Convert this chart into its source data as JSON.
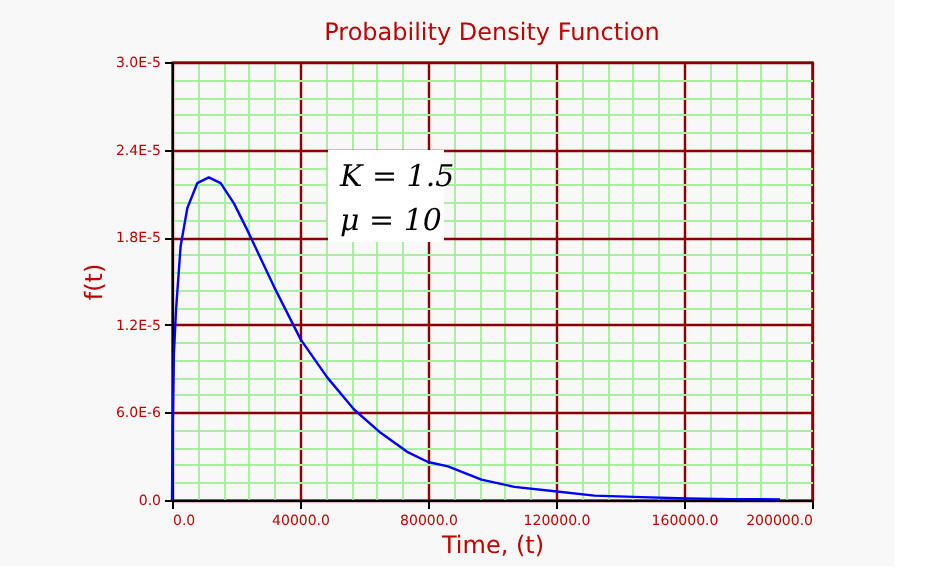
{
  "chart_data": {
    "type": "line",
    "title": "Probability Density Function",
    "xlabel": "Time, (t)",
    "ylabel": "f(t)",
    "annotations": [
      "K = 1.5",
      "μ = 10"
    ],
    "x": [
      0,
      200,
      600,
      1250,
      2700,
      4800,
      7900,
      11500,
      15200,
      19400,
      23500,
      31900,
      40200,
      48500,
      56900,
      65200,
      73500,
      80000,
      86250,
      96700,
      107000,
      119600,
      132000,
      146700,
      161000,
      175000,
      190000
    ],
    "series": [
      {
        "color": "#0000ff",
        "values": [
          0,
          4.6e-06,
          1e-05,
          1.3e-05,
          1.74e-05,
          2e-05,
          2.17e-05,
          2.21e-05,
          2.17e-05,
          2.03e-05,
          1.85e-05,
          1.46e-05,
          1.1e-05,
          8.4e-06,
          6.2e-06,
          4.6e-06,
          3.3e-06,
          2.6e-06,
          2.3e-06,
          1.4e-06,
          9e-07,
          6e-07,
          3e-07,
          2e-07,
          1e-07,
          6e-08,
          4e-08
        ]
      }
    ],
    "xlim": [
      0,
      200000
    ],
    "ylim": [
      0,
      3e-05
    ],
    "xticks": [
      {
        "value": 0,
        "label": "0.0"
      },
      {
        "value": 8000,
        "label": null
      },
      {
        "value": 16000,
        "label": null
      },
      {
        "value": 24000,
        "label": null
      },
      {
        "value": 32000,
        "label": null
      },
      {
        "value": 40000,
        "label": "40000.0"
      },
      {
        "value": 48000,
        "label": null
      },
      {
        "value": 56000,
        "label": null
      },
      {
        "value": 64000,
        "label": null
      },
      {
        "value": 72000,
        "label": null
      },
      {
        "value": 80000,
        "label": "80000.0"
      },
      {
        "value": 88000,
        "label": null
      },
      {
        "value": 96000,
        "label": null
      },
      {
        "value": 104000,
        "label": null
      },
      {
        "value": 112000,
        "label": null
      },
      {
        "value": 120000,
        "label": "120000.0"
      },
      {
        "value": 128000,
        "label": null
      },
      {
        "value": 136000,
        "label": null
      },
      {
        "value": 144000,
        "label": null
      },
      {
        "value": 152000,
        "label": null
      },
      {
        "value": 160000,
        "label": "160000.0"
      },
      {
        "value": 168000,
        "label": null
      },
      {
        "value": 176000,
        "label": null
      },
      {
        "value": 184000,
        "label": null
      },
      {
        "value": 192000,
        "label": null
      },
      {
        "value": 200000,
        "label": "200000.0"
      }
    ],
    "yticks": [
      {
        "value": 0,
        "label": "0.0"
      },
      {
        "value": 1.2e-06,
        "label": null
      },
      {
        "value": 2.4e-06,
        "label": null
      },
      {
        "value": 3.6e-06,
        "label": null
      },
      {
        "value": 4.8e-06,
        "label": null
      },
      {
        "value": 6e-06,
        "label": "6.0E-6"
      },
      {
        "value": 7.2e-06,
        "label": null
      },
      {
        "value": 8.4e-06,
        "label": null
      },
      {
        "value": 9.6e-06,
        "label": null
      },
      {
        "value": 1.08e-05,
        "label": null
      },
      {
        "value": 1.2e-05,
        "label": "1.2E-5"
      },
      {
        "value": 1.32e-05,
        "label": null
      },
      {
        "value": 1.44e-05,
        "label": null
      },
      {
        "value": 1.56e-05,
        "label": null
      },
      {
        "value": 1.68e-05,
        "label": null
      },
      {
        "value": 1.8e-05,
        "label": "1.8E-5"
      },
      {
        "value": 1.92e-05,
        "label": null
      },
      {
        "value": 2.04e-05,
        "label": null
      },
      {
        "value": 2.16e-05,
        "label": null
      },
      {
        "value": 2.28e-05,
        "label": null
      },
      {
        "value": 2.4e-05,
        "label": "2.4E-5"
      },
      {
        "value": 2.52e-05,
        "label": null
      },
      {
        "value": 2.64e-05,
        "label": null
      },
      {
        "value": 2.76e-05,
        "label": null
      },
      {
        "value": 2.88e-05,
        "label": null
      },
      {
        "value": 3e-05,
        "label": "3.0E-5"
      }
    ],
    "grid": true,
    "legend": false,
    "marker": "none",
    "line_style": "solid"
  }
}
